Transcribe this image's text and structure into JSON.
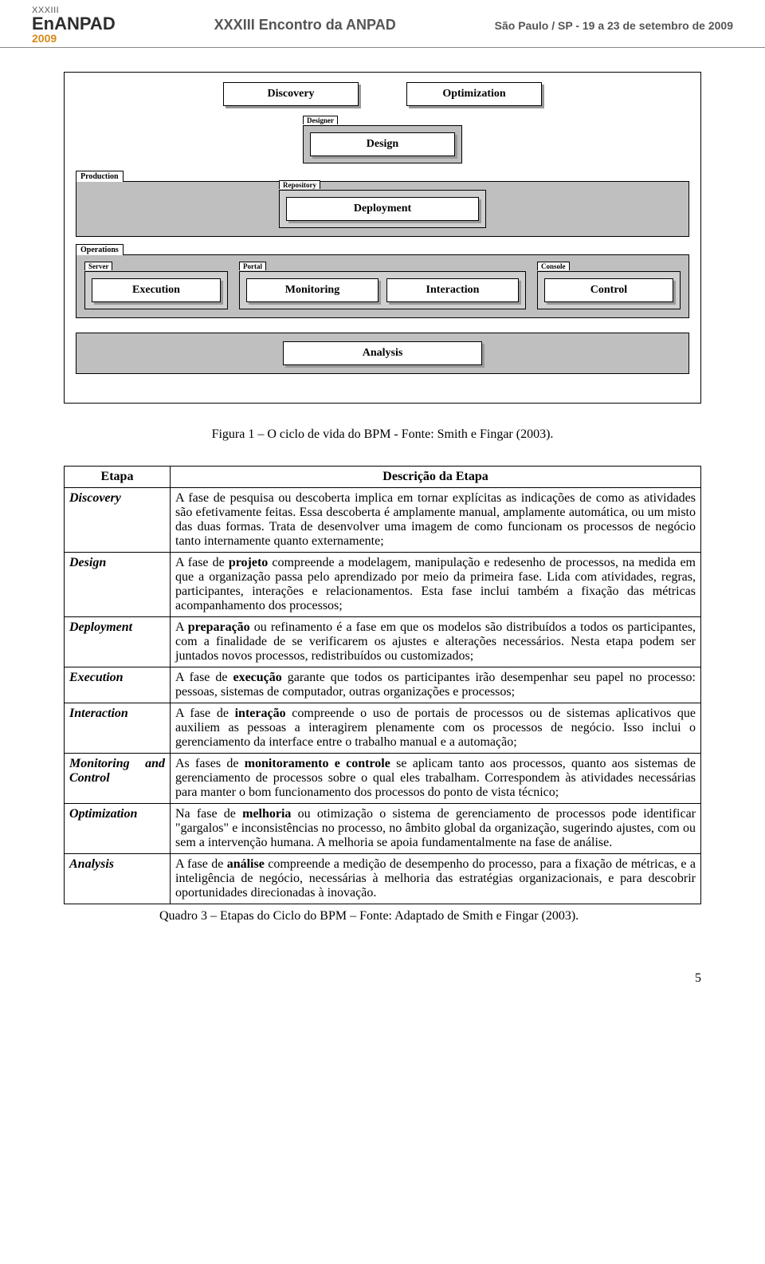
{
  "header": {
    "logo_line1": "XXXIII",
    "logo_line2": "EnANPAD",
    "logo_year": "2009",
    "center": "XXXIII Encontro da ANPAD",
    "right": "São Paulo / SP - 19 a 23 de setembro de 2009"
  },
  "diagram": {
    "top_boxes": {
      "discovery": "Discovery",
      "optimization": "Optimization"
    },
    "designer": {
      "tab": "Designer",
      "design": "Design"
    },
    "production": {
      "label": "Production",
      "repository_tab": "Repository",
      "deployment": "Deployment"
    },
    "operations": {
      "label": "Operations",
      "server_tab": "Server",
      "execution": "Execution",
      "portal_tab": "Portal",
      "monitoring": "Monitoring",
      "interaction": "Interaction",
      "console_tab": "Console",
      "control": "Control"
    },
    "analysis": "Analysis"
  },
  "figure_caption": "Figura 1 – O ciclo de vida do BPM - Fonte: Smith e Fingar (2003).",
  "table": {
    "header_etapa": "Etapa",
    "header_desc": "Descrição da Etapa",
    "rows": [
      {
        "etapa": "Discovery",
        "desc": "A fase de pesquisa ou descoberta implica em tornar explícitas as indicações de como as atividades são efetivamente feitas. Essa descoberta é amplamente manual, amplamente automática, ou um misto das duas formas. Trata de desenvolver uma imagem de como funcionam os processos de negócio tanto internamente quanto externamente;"
      },
      {
        "etapa": "Design",
        "desc": "A fase de <b>projeto</b> compreende a modelagem, manipulação e redesenho de processos, na medida em que a organização passa pelo aprendizado por meio da primeira fase. Lida com atividades, regras, participantes, interações e relacionamentos. Esta fase inclui também a fixação das métricas acompanhamento dos processos;"
      },
      {
        "etapa": "Deployment",
        "desc": "A <b>preparação</b> ou refinamento é a fase em que os modelos são distribuídos a todos os participantes, com a finalidade de se verificarem os ajustes e alterações necessários. Nesta etapa podem ser juntados novos processos, redistribuídos ou customizados;"
      },
      {
        "etapa": "Execution",
        "desc": "A fase de <b>execução</b> garante que todos os participantes irão desempenhar seu papel no processo: pessoas, sistemas de computador, outras organizações e processos;"
      },
      {
        "etapa": "Interaction",
        "desc": "A fase de <b>interação</b> compreende o uso de portais de processos ou de sistemas aplicativos que auxiliem as pessoas a interagirem plenamente com os processos de negócio. Isso inclui o gerenciamento da interface entre o trabalho manual e a automação;"
      },
      {
        "etapa": "Monitoring and Control",
        "desc": "As fases de <b>monitoramento e controle</b> se aplicam tanto aos processos, quanto aos sistemas de gerenciamento de processos sobre o qual eles trabalham. Correspondem às atividades necessárias para manter o bom funcionamento dos processos do ponto de vista técnico;"
      },
      {
        "etapa": "Optimization",
        "desc": "Na fase de <b>melhoria</b> ou otimização o sistema de gerenciamento de processos pode identificar \"gargalos\" e inconsistências no processo, no âmbito global da organização, sugerindo ajustes, com ou sem a intervenção humana. A melhoria se apoia fundamentalmente na fase de análise."
      },
      {
        "etapa": "Analysis",
        "desc": "A fase de <b>análise</b> compreende a medição de desempenho do processo, para a fixação de métricas, e a inteligência de negócio, necessárias à melhoria das estratégias organizacionais, e para descobrir oportunidades direcionadas à inovação."
      }
    ],
    "caption": "Quadro 3 – Etapas do Ciclo do BPM – Fonte: Adaptado de Smith e Fingar (2003)."
  },
  "page_number": "5"
}
